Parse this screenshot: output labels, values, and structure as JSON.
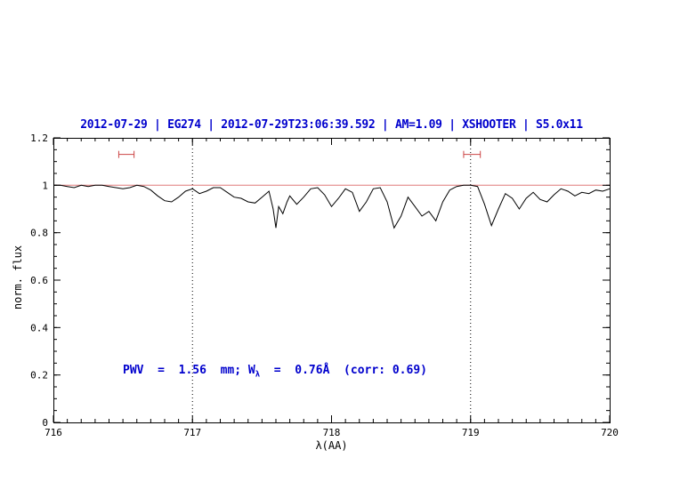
{
  "colors": {
    "title_text": "#0000cd",
    "annotation_text": "#0000cd",
    "spectrum": "#000000",
    "continuum": "#e07a7a",
    "marker": "#cc4444",
    "frame": "#000000"
  },
  "chart_data": {
    "type": "line",
    "title": "2012-07-29 | EG274 | 2012-07-29T23:06:39.592 | AM=1.09 | XSHOOTER | S5.0x11",
    "xlabel": "λ(AA)",
    "ylabel": "norm. flux",
    "xlim": [
      716,
      720
    ],
    "ylim": [
      0,
      1.2
    ],
    "grid": "off",
    "legend": "none",
    "x_ticks": {
      "major": [
        716,
        717,
        718,
        719,
        720
      ],
      "labels": [
        "716",
        "717",
        "718",
        "719",
        "720"
      ],
      "minor_step": 0.1
    },
    "y_ticks": {
      "major": [
        0,
        0.2,
        0.4,
        0.6,
        0.8,
        1.0,
        1.2
      ],
      "labels": [
        "0",
        "0.2",
        "0.4",
        "0.6",
        "0.8",
        "1",
        "1.2"
      ],
      "minor_step": 0.05
    },
    "vlines": {
      "x": [
        717,
        719
      ],
      "style": "dotted",
      "color": "#000000"
    },
    "annotation": {
      "text": "PWV = 1.56 mm; W_λ = 0.76Å (corr: 0.69)",
      "parts": {
        "pre": "PWV  =  1.56  mm; W",
        "sub": "λ",
        "post": "  =  0.76Å  (corr: 0.69)"
      },
      "color": "#0000cd"
    },
    "series": [
      {
        "name": "spectrum",
        "color": "#000000",
        "x": [
          716.0,
          716.05,
          716.1,
          716.15,
          716.2,
          716.25,
          716.3,
          716.35,
          716.4,
          716.45,
          716.5,
          716.55,
          716.6,
          716.65,
          716.7,
          716.75,
          716.8,
          716.85,
          716.9,
          716.95,
          717.0,
          717.05,
          717.1,
          717.15,
          717.2,
          717.25,
          717.3,
          717.35,
          717.4,
          717.45,
          717.5,
          717.55,
          717.58,
          717.6,
          717.62,
          717.65,
          717.68,
          717.7,
          717.75,
          717.8,
          717.85,
          717.9,
          717.95,
          718.0,
          718.05,
          718.1,
          718.15,
          718.2,
          718.25,
          718.3,
          718.35,
          718.4,
          718.45,
          718.5,
          718.55,
          718.6,
          718.65,
          718.7,
          718.75,
          718.8,
          718.85,
          718.9,
          718.95,
          719.0,
          719.05,
          719.1,
          719.15,
          719.2,
          719.25,
          719.3,
          719.35,
          719.4,
          719.45,
          719.5,
          719.55,
          719.6,
          719.65,
          719.7,
          719.75,
          719.8,
          719.85,
          719.9,
          719.95,
          720.0
        ],
        "y": [
          1.0,
          1.0,
          0.995,
          0.99,
          1.0,
          0.995,
          1.0,
          1.0,
          0.995,
          0.99,
          0.985,
          0.99,
          1.0,
          0.995,
          0.98,
          0.955,
          0.935,
          0.93,
          0.95,
          0.975,
          0.985,
          0.965,
          0.975,
          0.99,
          0.99,
          0.97,
          0.95,
          0.945,
          0.93,
          0.925,
          0.95,
          0.975,
          0.9,
          0.82,
          0.91,
          0.88,
          0.93,
          0.955,
          0.92,
          0.95,
          0.985,
          0.99,
          0.96,
          0.91,
          0.945,
          0.985,
          0.97,
          0.89,
          0.93,
          0.985,
          0.99,
          0.93,
          0.82,
          0.87,
          0.95,
          0.91,
          0.87,
          0.89,
          0.85,
          0.93,
          0.98,
          0.995,
          1.0,
          1.0,
          0.995,
          0.92,
          0.83,
          0.9,
          0.965,
          0.945,
          0.9,
          0.945,
          0.97,
          0.94,
          0.93,
          0.96,
          0.985,
          0.975,
          0.955,
          0.97,
          0.965,
          0.98,
          0.975,
          0.985
        ]
      },
      {
        "name": "continuum",
        "color": "#e07a7a",
        "x": [
          716,
          720
        ],
        "y": [
          1.0,
          1.0
        ]
      }
    ],
    "markers": [
      {
        "type": "errorbar-h",
        "x1": 716.47,
        "x2": 716.58,
        "y": 1.13,
        "color": "#cc4444"
      },
      {
        "type": "errorbar-h",
        "x1": 718.95,
        "x2": 719.07,
        "y": 1.13,
        "color": "#cc4444"
      }
    ]
  }
}
